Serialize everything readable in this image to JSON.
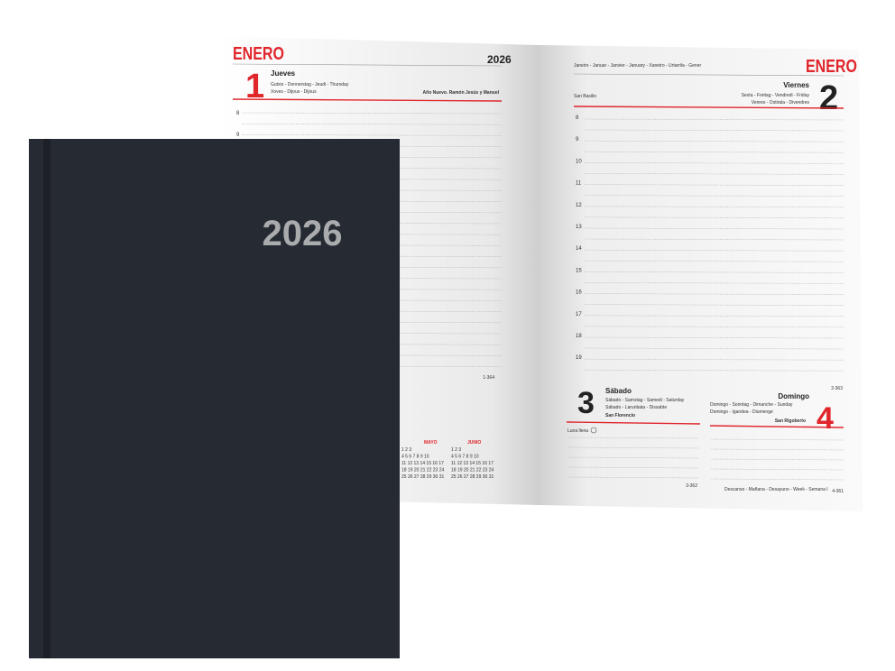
{
  "left_page": {
    "month": "ENERO",
    "year": "2026",
    "day_number": "1",
    "weekday": "Jueves",
    "translations": [
      "Gutxio - Donnerstag - Jeudi - Thursday",
      "Xoves - Dijous - Dijous"
    ],
    "saint": "Año Nuevo. Ramón Jesús y Manuel",
    "hours": [
      "8",
      "9"
    ],
    "day_count": "1-364",
    "mini_calendar": {
      "months": [
        "MAYO",
        "JUNIO"
      ],
      "rows": [
        "1 2 3",
        "4 5 6 7 8 9 10",
        "11 12 13 14 15 16 17",
        "18 19 20 21 22 23 24",
        "25 26 27 28 29 30 31"
      ]
    }
  },
  "right_page": {
    "month_translations": "Janeiro - Januar - Janvier - January - Xaneiro - Urtarrila - Gener",
    "month": "ENERO",
    "day_number": "2",
    "weekday": "Viernes",
    "translations": [
      "Sexta - Freitag - Vendredi - Friday",
      "Venres - Ostirala - Divendres"
    ],
    "saint": "San Basilio",
    "hours": [
      "8",
      "9",
      "10",
      "11",
      "12",
      "13",
      "14",
      "15",
      "16",
      "17",
      "18",
      "19"
    ],
    "day_count": "2-363"
  },
  "weekend": [
    {
      "day_number": "3",
      "weekday": "Sábado",
      "translations": [
        "Sábado - Samstag - Samedi - Saturday",
        "Sábado - Larunbata - Dissabte"
      ],
      "saint": "San Florencio",
      "moon": "Luna llena",
      "day_count": "3-362"
    },
    {
      "day_number": "4",
      "weekday": "Domingo",
      "translations": [
        "Domingo - Sonntag - Dimanche - Sunday",
        "Domingo - Igandea - Diumenge"
      ],
      "saint": "San Rigoberto",
      "day_count": "4-361"
    }
  ],
  "footer_note": "Descanso - Mañana - Desayuno - Week - Semana I",
  "cover": {
    "year": "2026"
  }
}
